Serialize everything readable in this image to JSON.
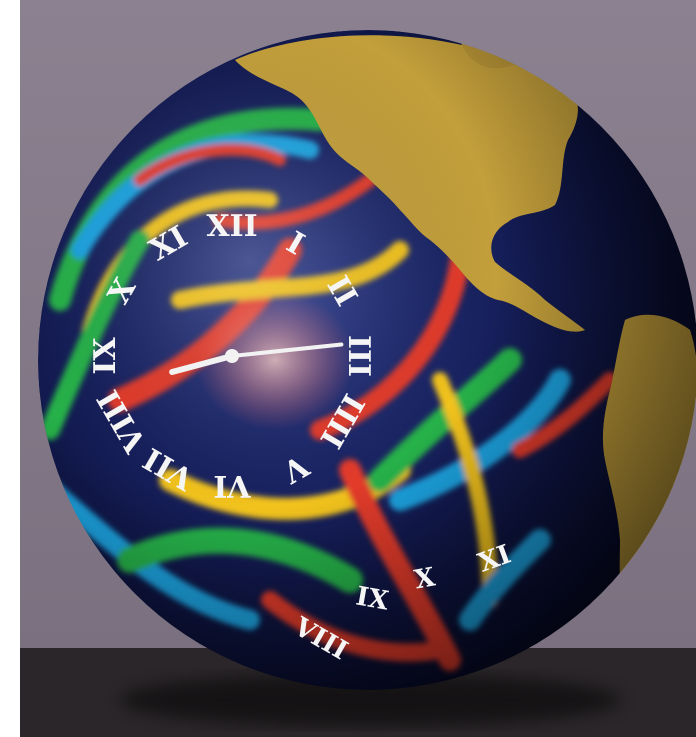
{
  "scene": {
    "subject": "painted globe clock",
    "colors": {
      "wall": "#8d8290",
      "table": "#2a2629",
      "ocean": "#121a4a",
      "gold": "#c9a23a",
      "hands": "#f2f2f2"
    },
    "clock_face": {
      "numerals": [
        "XII",
        "I",
        "II",
        "III",
        "IIII",
        "V",
        "VI",
        "VII",
        "VIII",
        "IX",
        "X",
        "XI"
      ],
      "hour_hand_value": 8.5,
      "minute_hand_value": 14
    },
    "second_clock_face": {
      "numerals": [
        "XI",
        "X",
        "IX",
        "VIII"
      ]
    }
  }
}
